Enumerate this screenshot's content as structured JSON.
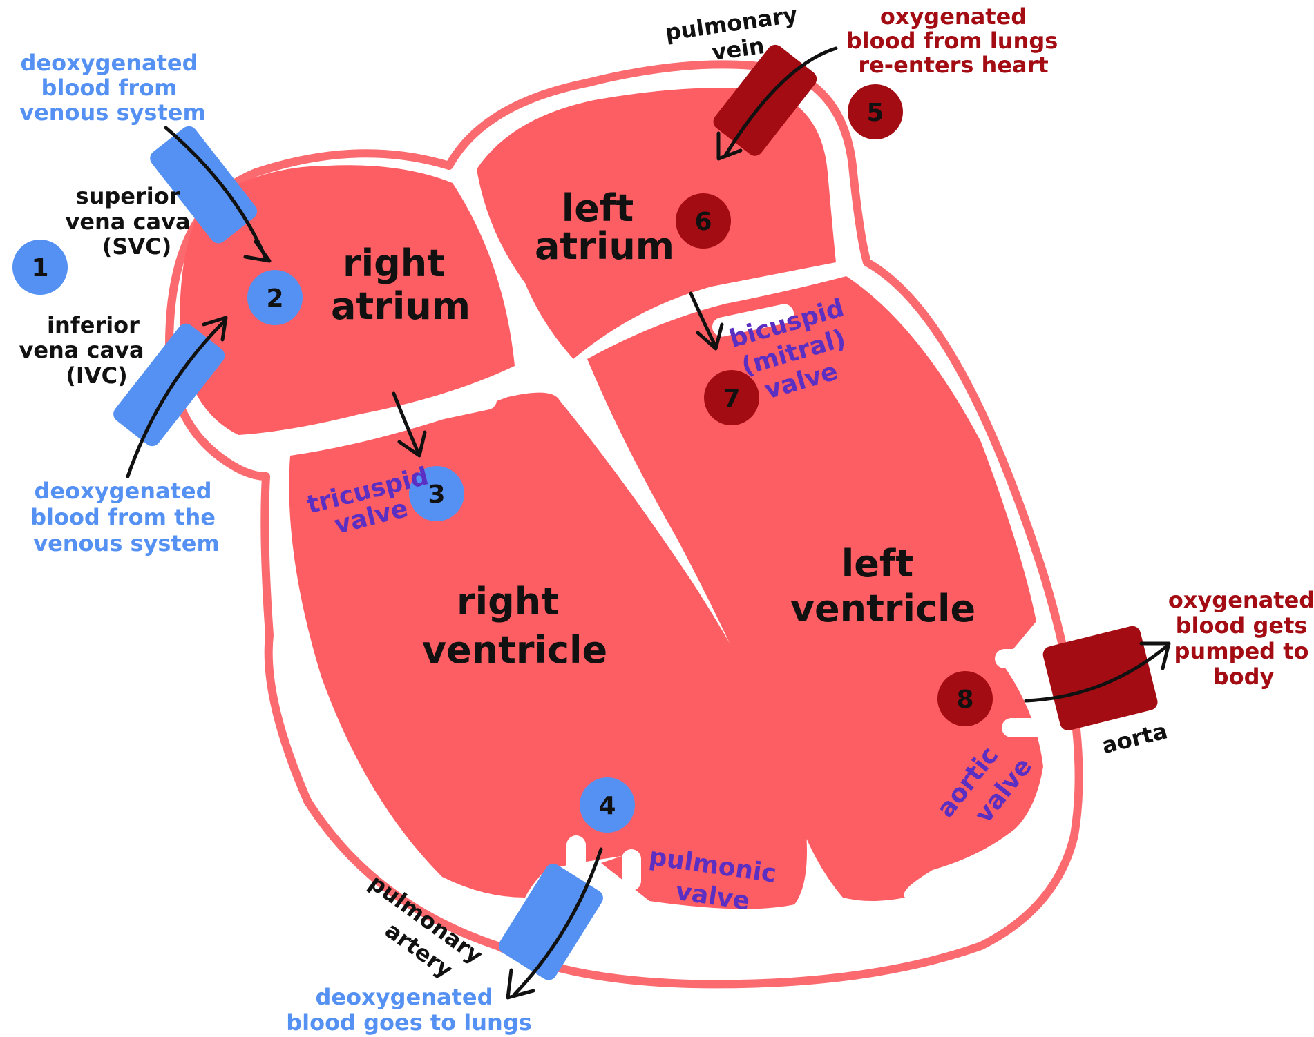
{
  "colors": {
    "chamber_fill": "#fd5e63",
    "outline": "#fa6a6e",
    "deoxygenated": "#5591f2",
    "oxygenated": "#a20c12",
    "valve_label": "#5a2fc2",
    "text": "#111111"
  },
  "chambers": {
    "right_atrium": [
      "right",
      "atrium"
    ],
    "left_atrium": [
      "left",
      "atrium"
    ],
    "right_ventricle": [
      "right",
      "ventricle"
    ],
    "left_ventricle": [
      "left",
      "ventricle"
    ]
  },
  "vessels": {
    "svc": [
      "superior",
      "vena cava",
      "(SVC)"
    ],
    "ivc": [
      "inferior",
      "vena cava",
      "(IVC)"
    ],
    "pulmonary_vein": [
      "pulmonary",
      "vein"
    ],
    "pulmonary_artery": [
      "pulmonary",
      "artery"
    ],
    "aorta": [
      "aorta"
    ]
  },
  "valves": {
    "tricuspid": [
      "tricuspid",
      "valve"
    ],
    "bicuspid": [
      "bicuspid",
      "(mitral)",
      "valve"
    ],
    "pulmonic": [
      "pulmonic",
      "valve"
    ],
    "aortic": [
      "aortic",
      "valve"
    ]
  },
  "flow_notes": {
    "svc_in": [
      "deoxygenated",
      "blood from",
      "venous system"
    ],
    "ivc_in": [
      "deoxygenated",
      "blood from the",
      "venous system"
    ],
    "to_lungs": [
      "deoxygenated",
      "blood goes to lungs"
    ],
    "from_lungs": [
      "oxygenated",
      "blood from lungs",
      "re-enters heart"
    ],
    "to_body": [
      "oxygenated",
      "blood gets",
      "pumped to",
      "body"
    ]
  },
  "steps": [
    "1",
    "2",
    "3",
    "4",
    "5",
    "6",
    "7",
    "8"
  ]
}
